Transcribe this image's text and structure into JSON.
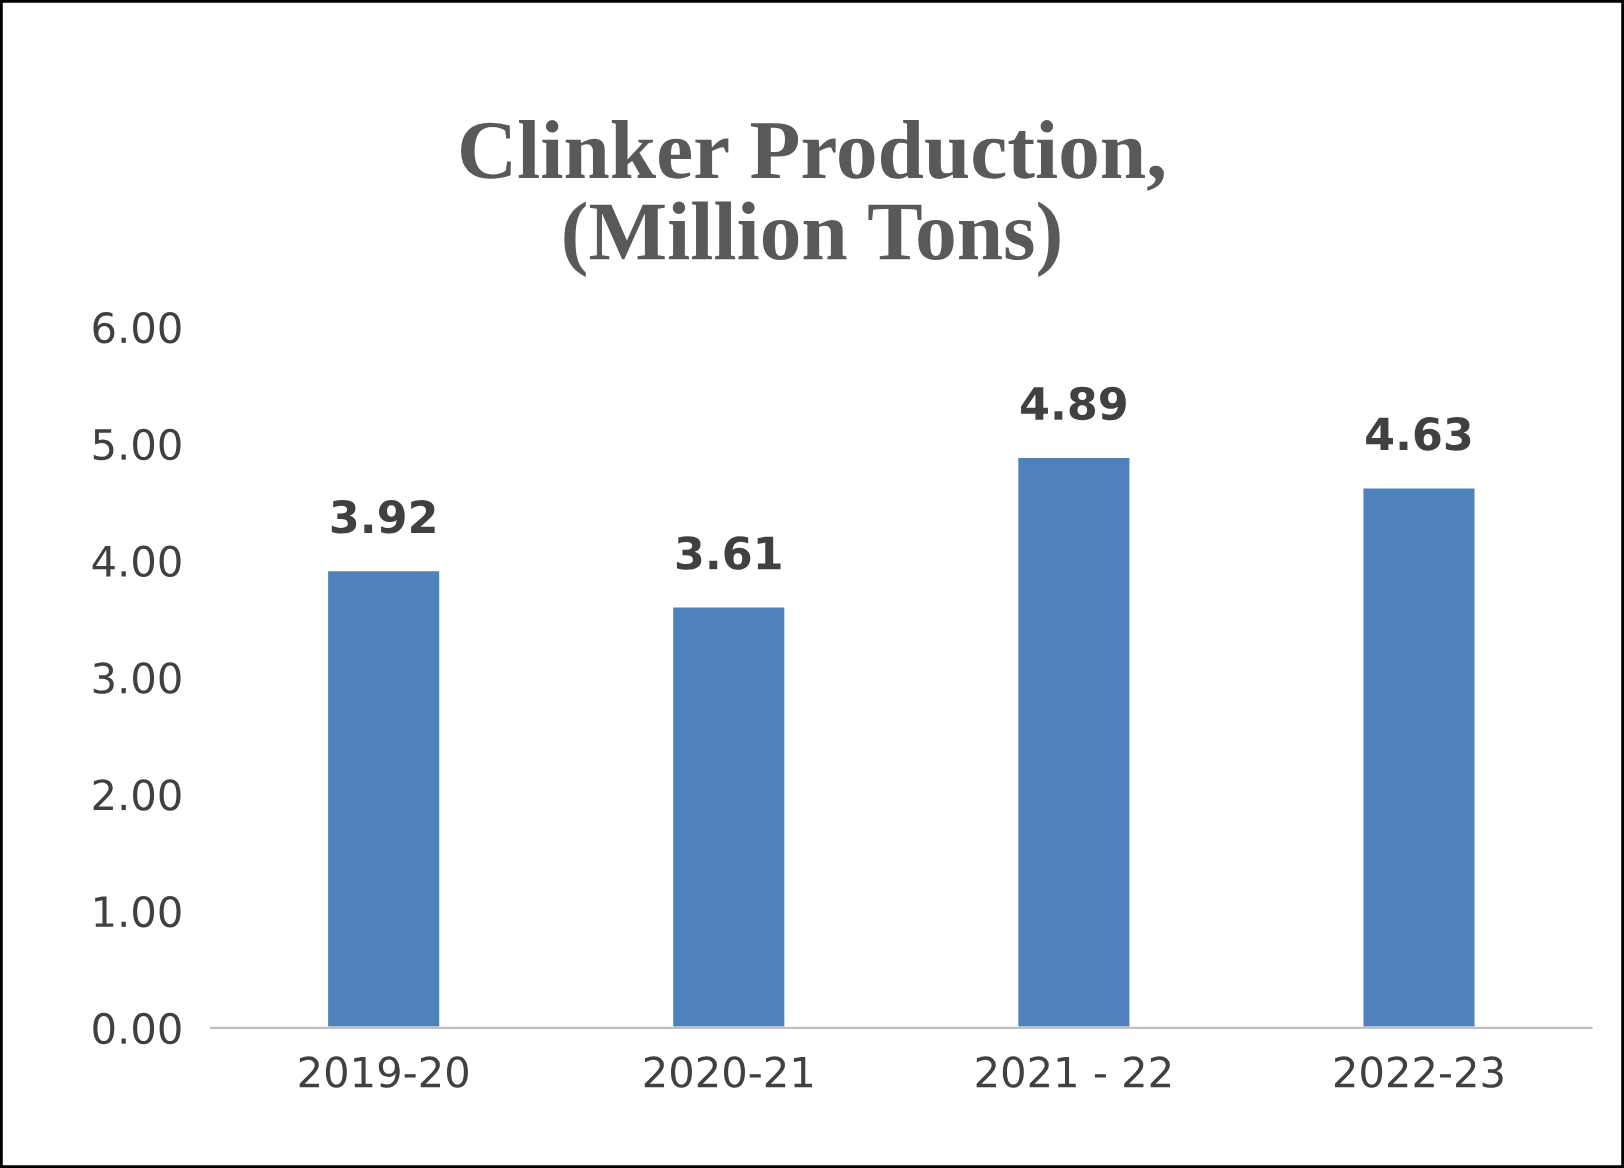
{
  "chart_data": {
    "type": "bar",
    "title": "Clinker Production,\n(Million Tons)",
    "categories": [
      "2019-20",
      "2020-21",
      "2021 - 22",
      "2022-23"
    ],
    "values": [
      3.92,
      3.61,
      4.89,
      4.63
    ],
    "color": "#4f81bd",
    "ylim": [
      0,
      6
    ],
    "yticks": [
      {
        "value": 0,
        "label": "0.00"
      },
      {
        "value": 1,
        "label": "1.00"
      },
      {
        "value": 2,
        "label": "2.00"
      },
      {
        "value": 3,
        "label": "3.00"
      },
      {
        "value": 4,
        "label": "4.00"
      },
      {
        "value": 5,
        "label": "5.00"
      },
      {
        "value": 6,
        "label": "6.00"
      }
    ],
    "data_labels": true,
    "grid": false,
    "legend": false
  }
}
